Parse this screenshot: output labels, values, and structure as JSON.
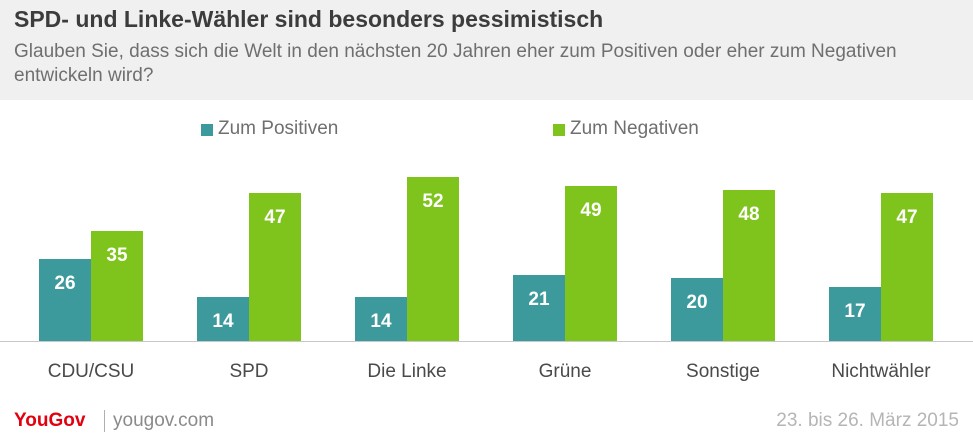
{
  "header": {
    "title": "SPD- und Linke-Wähler sind besonders pessimistisch",
    "subtitle": "Glauben Sie, dass sich die Welt in den nächsten 20 Jahren eher zum Positiven oder eher zum Negativen entwickeln wird?"
  },
  "colors": {
    "positive": "#3d9a9c",
    "negative": "#7fc41c"
  },
  "chart_data": {
    "type": "bar",
    "categories": [
      "CDU/CSU",
      "SPD",
      "Die Linke",
      "Grüne",
      "Sonstige",
      "Nichtwähler"
    ],
    "series": [
      {
        "name": "Zum Positiven",
        "values": [
          26,
          14,
          14,
          21,
          20,
          17
        ]
      },
      {
        "name": "Zum Negativen",
        "values": [
          35,
          47,
          52,
          49,
          48,
          47
        ]
      }
    ],
    "title": "",
    "xlabel": "",
    "ylabel": "",
    "legend": "top",
    "grid": false
  },
  "footer": {
    "logo": "YouGov",
    "site": "yougov.com",
    "date": "23. bis 26. März 2015"
  }
}
